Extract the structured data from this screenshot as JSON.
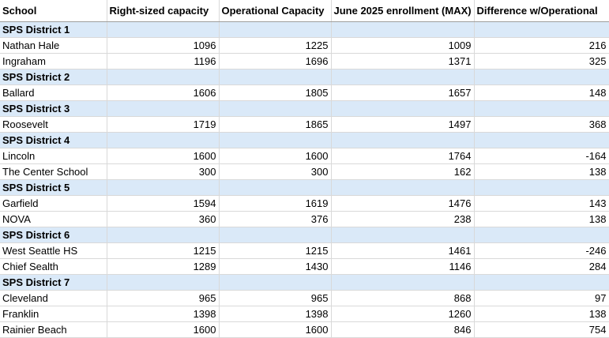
{
  "columns": [
    "School",
    "Right-sized capacity",
    "Operational Capacity",
    "June 2025 enrollment (MAX)",
    "Difference w/Operational"
  ],
  "districts": [
    {
      "name": "SPS District 1",
      "schools": [
        {
          "school": "Nathan Hale",
          "right_sized": "1096",
          "operational": "1225",
          "enrollment": "1009",
          "difference": "216"
        },
        {
          "school": "Ingraham",
          "right_sized": "1196",
          "operational": "1696",
          "enrollment": "1371",
          "difference": "325"
        }
      ]
    },
    {
      "name": "SPS District 2",
      "schools": [
        {
          "school": "Ballard",
          "right_sized": "1606",
          "operational": "1805",
          "enrollment": "1657",
          "difference": "148"
        }
      ]
    },
    {
      "name": "SPS District 3",
      "schools": [
        {
          "school": "Roosevelt",
          "right_sized": "1719",
          "operational": "1865",
          "enrollment": "1497",
          "difference": "368"
        }
      ]
    },
    {
      "name": "SPS District 4",
      "schools": [
        {
          "school": "Lincoln",
          "right_sized": "1600",
          "operational": "1600",
          "enrollment": "1764",
          "difference": "-164"
        },
        {
          "school": "The Center School",
          "right_sized": "300",
          "operational": "300",
          "enrollment": "162",
          "difference": "138"
        }
      ]
    },
    {
      "name": "SPS District 5",
      "schools": [
        {
          "school": "Garfield",
          "right_sized": "1594",
          "operational": "1619",
          "enrollment": "1476",
          "difference": "143"
        },
        {
          "school": "NOVA",
          "right_sized": "360",
          "operational": "376",
          "enrollment": "238",
          "difference": "138"
        }
      ]
    },
    {
      "name": "SPS District 6",
      "schools": [
        {
          "school": "West Seattle HS",
          "right_sized": "1215",
          "operational": "1215",
          "enrollment": "1461",
          "difference": "-246"
        },
        {
          "school": "Chief Sealth",
          "right_sized": "1289",
          "operational": "1430",
          "enrollment": "1146",
          "difference": "284"
        }
      ]
    },
    {
      "name": "SPS District 7",
      "schools": [
        {
          "school": "Cleveland",
          "right_sized": "965",
          "operational": "965",
          "enrollment": "868",
          "difference": "97"
        },
        {
          "school": "Franklin",
          "right_sized": "1398",
          "operational": "1398",
          "enrollment": "1260",
          "difference": "138"
        },
        {
          "school": "Rainier Beach",
          "right_sized": "1600",
          "operational": "1600",
          "enrollment": "846",
          "difference": "754"
        }
      ]
    }
  ],
  "colors": {
    "district_fill": "#dae9f8",
    "gridline": "#d9d9d9"
  }
}
